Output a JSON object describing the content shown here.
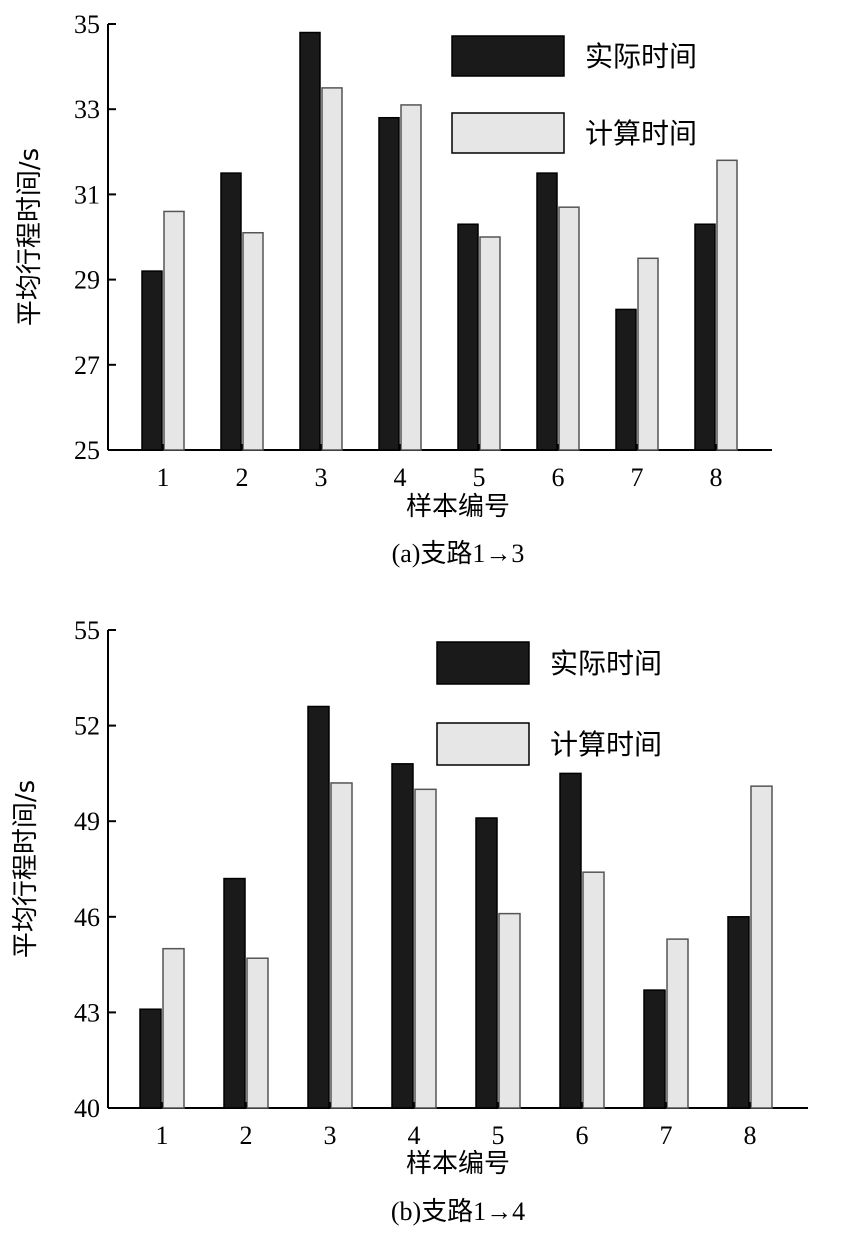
{
  "chart_data": [
    {
      "type": "bar",
      "caption": "(a)支路1→3",
      "xlabel": "样本编号",
      "ylabel": "平均行程时间/s",
      "categories": [
        "1",
        "2",
        "3",
        "4",
        "5",
        "6",
        "7",
        "8"
      ],
      "ylim": [
        25,
        35
      ],
      "yticks": [
        "25",
        "27",
        "29",
        "31",
        "33",
        "35"
      ],
      "legend_position": "top-right",
      "series": [
        {
          "name": "实际时间",
          "color": "#1a1a1a",
          "values": [
            29.2,
            31.5,
            34.8,
            32.8,
            30.3,
            31.5,
            28.3,
            30.3
          ]
        },
        {
          "name": "计算时间",
          "color": "#e6e6e6",
          "values": [
            30.6,
            30.1,
            33.5,
            33.1,
            30.0,
            30.7,
            29.5,
            31.8
          ]
        }
      ]
    },
    {
      "type": "bar",
      "caption": "(b)支路1→4",
      "xlabel": "样本编号",
      "ylabel": "平均行程时间/s",
      "categories": [
        "1",
        "2",
        "3",
        "4",
        "5",
        "6",
        "7",
        "8"
      ],
      "ylim": [
        40,
        55
      ],
      "yticks": [
        "40",
        "43",
        "46",
        "49",
        "52",
        "55"
      ],
      "legend_position": "top-right",
      "series": [
        {
          "name": "实际时间",
          "color": "#1a1a1a",
          "values": [
            43.1,
            47.2,
            52.6,
            50.8,
            49.1,
            50.5,
            43.7,
            46.0
          ]
        },
        {
          "name": "计算时间",
          "color": "#e6e6e6",
          "values": [
            45.0,
            44.7,
            50.2,
            50.0,
            46.1,
            47.4,
            45.3,
            50.1
          ]
        }
      ]
    }
  ]
}
